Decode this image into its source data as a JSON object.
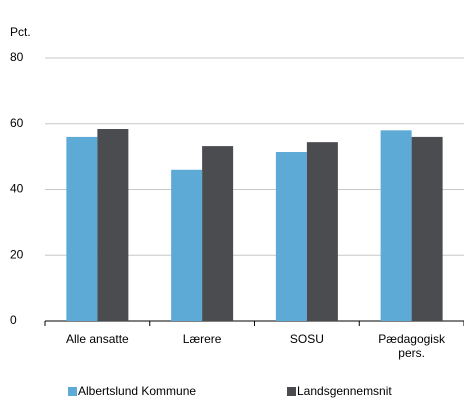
{
  "chart_data": {
    "type": "bar",
    "y_label": "Pct.",
    "categories": [
      "Alle ansatte",
      "Lærere",
      "SOSU",
      "Pædagogisk pers."
    ],
    "series": [
      {
        "name": "Albertslund Kommune",
        "color": "#5eaad6",
        "values": [
          56,
          46,
          51.4,
          58
        ]
      },
      {
        "name": "Landsgennemsnit",
        "color": "#4a4c50",
        "values": [
          58.4,
          53.2,
          54.4,
          56
        ]
      }
    ],
    "ylim": [
      0,
      80
    ],
    "yticks": [
      0,
      20,
      40,
      60,
      80
    ],
    "grid": true
  }
}
